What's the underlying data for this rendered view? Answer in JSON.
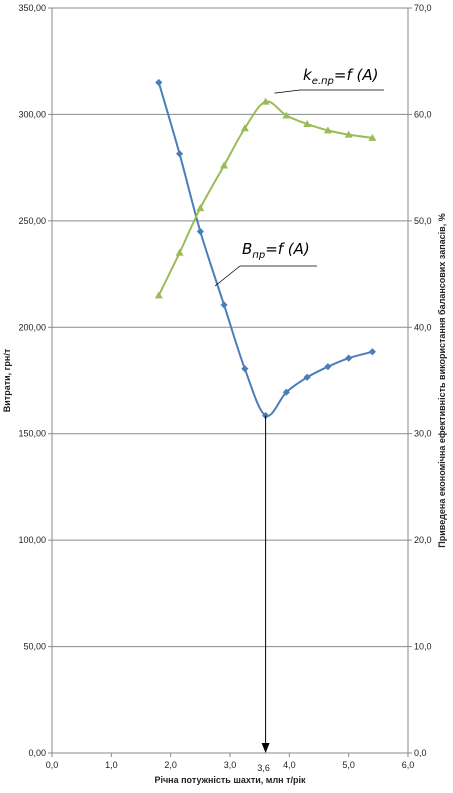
{
  "chart_data": {
    "type": "line",
    "xlabel": "Річна потужність шахти, млн т/рік",
    "ylabel": "Витрати, грн/т",
    "y2label": "Приведена економічна ефективність використання балансових запасів, %",
    "xlim": [
      0,
      6
    ],
    "ylim": [
      0,
      350
    ],
    "y2lim": [
      0,
      70
    ],
    "x_ticks": [
      "0,0",
      "1,0",
      "2,0",
      "3,0",
      "4,0",
      "5,0",
      "6,0"
    ],
    "y_ticks": [
      "0,00",
      "50,00",
      "100,00",
      "150,00",
      "200,00",
      "250,00",
      "300,00",
      "350,00"
    ],
    "y2_ticks": [
      "0,0",
      "10,0",
      "20,0",
      "30,0",
      "40,0",
      "50,0",
      "60,0",
      "70,0"
    ],
    "grid": true,
    "series": [
      {
        "axis": "left",
        "color": "#4a7ebb",
        "marker": "diamond",
        "x": [
          1.8,
          2.15,
          2.5,
          2.9,
          3.25,
          3.6,
          3.95,
          4.3,
          4.65,
          5.0,
          5.4
        ],
        "values": [
          315,
          281.5,
          245,
          210.5,
          180.5,
          158.5,
          169.5,
          176.5,
          181.5,
          185.5,
          188.5
        ]
      },
      {
        "axis": "right",
        "color": "#9bbb59",
        "marker": "triangle",
        "x": [
          1.8,
          2.15,
          2.5,
          2.9,
          3.25,
          3.6,
          3.95,
          4.3,
          4.65,
          5.0,
          5.4
        ],
        "values": [
          43.0,
          47.0,
          51.2,
          55.2,
          58.7,
          61.2,
          59.9,
          59.1,
          58.5,
          58.1,
          57.8
        ]
      }
    ],
    "annotations": {
      "optimum_marker": "3,6",
      "optimum_x": 3.6,
      "green_curve": {
        "main": "k",
        "sub": "е.пр",
        "rest": "=f (A)",
        "anchor_x": 3.75,
        "anchor_y2": 62.0
      },
      "blue_curve": {
        "main": "B",
        "sub": "пр",
        "rest": "=f (A)",
        "anchor_x": 2.72,
        "anchor_y": 228
      }
    }
  }
}
